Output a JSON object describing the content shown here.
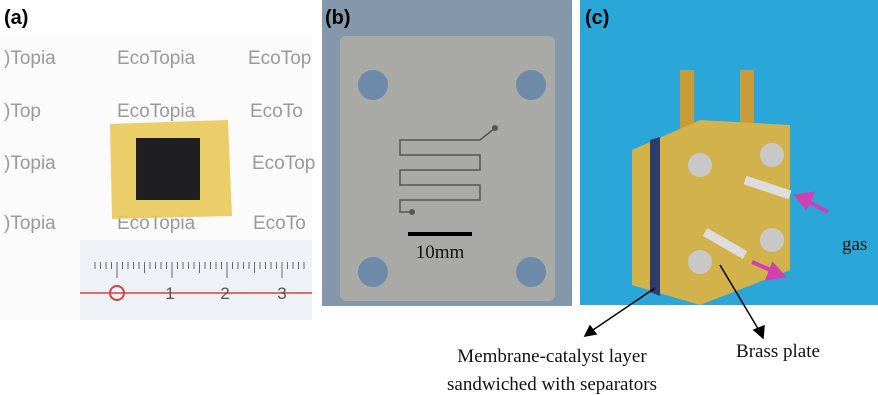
{
  "panels": {
    "a": {
      "label": "(a)",
      "watermark": [
        ")Topia",
        "EcoTopia",
        "EcoTop",
        ")Top",
        "EcoTopia",
        "EcoTo",
        ")Topia",
        "EcoTop",
        ")Topia",
        "EcoTopia",
        "EcoTo"
      ],
      "ruler_numbers": [
        "1",
        "2",
        "3"
      ]
    },
    "b": {
      "label": "(b)",
      "scale_bar": "10mm"
    },
    "c": {
      "label": "(c)",
      "gas": "gas",
      "membrane": [
        "Membrane-catalyst layer",
        "sandwiched with separators"
      ],
      "brass": "Brass plate"
    }
  }
}
